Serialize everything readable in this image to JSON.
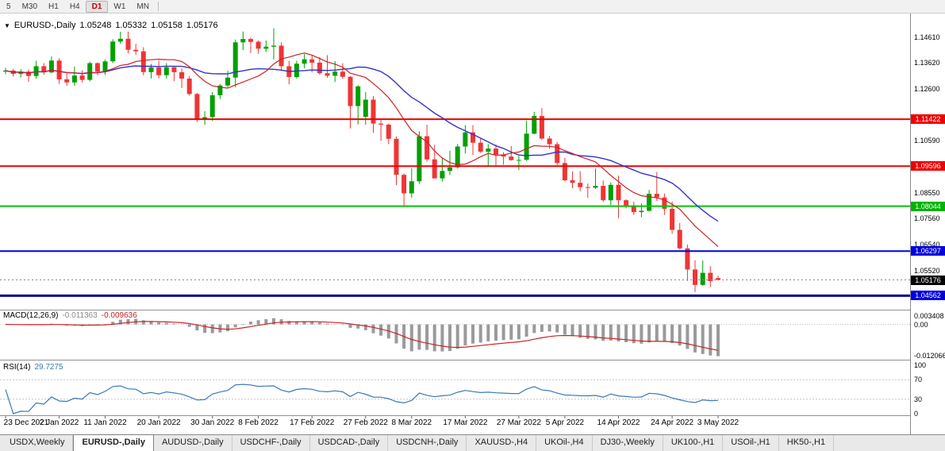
{
  "toolbar": {
    "timeframes": [
      {
        "label": "5",
        "active": false
      },
      {
        "label": "M30",
        "active": false
      },
      {
        "label": "H1",
        "active": false
      },
      {
        "label": "H4",
        "active": false
      },
      {
        "label": "D1",
        "active": true
      },
      {
        "label": "W1",
        "active": false
      },
      {
        "label": "MN",
        "active": false
      }
    ]
  },
  "chart_header": {
    "symbol": "EURUSD-,Daily",
    "open": "1.05248",
    "high": "1.05332",
    "low": "1.05158",
    "close": "1.05176"
  },
  "indicators": {
    "macd": {
      "title": "MACD(12,26,9)",
      "value1": "-0.011363",
      "value2": "-0.009636",
      "axis_labels": [
        {
          "label": "0.003408",
          "value": 0.003408
        },
        {
          "label": "0.00",
          "value": 0
        },
        {
          "label": "-0.012066",
          "value": -0.012066
        }
      ],
      "range_max": 0.0036,
      "range_min": -0.0125
    },
    "rsi": {
      "title": "RSI(14)",
      "value": "29.7275",
      "axis_labels": [
        {
          "label": "100",
          "value": 100
        },
        {
          "label": "70",
          "value": 70
        },
        {
          "label": "30",
          "value": 30
        },
        {
          "label": "0",
          "value": 0
        }
      ],
      "levels": [
        70,
        30
      ]
    }
  },
  "colors": {
    "bull": "#00a000",
    "bear": "#ef3535",
    "ma_slow": "#3333cc",
    "ma_fast": "#cc2222",
    "macd_hist": "#9a9a9a",
    "macd_signal": "#cc2222",
    "rsi_line": "#3a78b5",
    "bid_tag_bg": "#000000",
    "divider": "#909090"
  },
  "price_axis_ticks": [
    {
      "label": "1.14610",
      "price": 1.1461
    },
    {
      "label": "1.13620",
      "price": 1.1362
    },
    {
      "label": "1.12600",
      "price": 1.126
    },
    {
      "label": "1.10590",
      "price": 1.1059
    },
    {
      "label": "1.08550",
      "price": 1.0855
    },
    {
      "label": "1.07560",
      "price": 1.0756
    },
    {
      "label": "1.06540",
      "price": 1.0654
    },
    {
      "label": "1.05520",
      "price": 1.0552
    }
  ],
  "chart_data": {
    "type": "candlestick",
    "symbol": "EURUSD-",
    "timeframe": "Daily",
    "price_max": 1.1553,
    "price_min": 1.0408,
    "bid": 1.05176,
    "bid_label": "1.05176",
    "levels": [
      {
        "label": "1.11422",
        "price": 1.11422,
        "line": "#ee0000",
        "tag": "#ee0000",
        "width": 2
      },
      {
        "label": "1.09596",
        "price": 1.09596,
        "line": "#ee0000",
        "tag": "#ee0000",
        "width": 2
      },
      {
        "label": "1.08044",
        "price": 1.08044,
        "line": "#00c800",
        "tag": "#00b400",
        "width": 2
      },
      {
        "label": "1.06297",
        "price": 1.06297,
        "line": "#0000e0",
        "tag": "#0000e0",
        "width": 2
      },
      {
        "label": "1.04562",
        "price": 1.04562,
        "line": "#000090",
        "tag": "#0000e0",
        "width": 3
      }
    ],
    "overlays": [
      {
        "name": "ma-slow",
        "type": "sma",
        "period": 20
      },
      {
        "name": "ma-fast",
        "type": "sma",
        "period": 10
      }
    ],
    "date_ticks": [
      {
        "i": 0,
        "label": "23 Dec 2021"
      },
      {
        "i": 7,
        "label": "2 Jan 2022"
      },
      {
        "i": 13,
        "label": "11 Jan 2022"
      },
      {
        "i": 20,
        "label": "20 Jan 2022"
      },
      {
        "i": 27,
        "label": "30 Jan 2022"
      },
      {
        "i": 33,
        "label": "8 Feb 2022"
      },
      {
        "i": 40,
        "label": "17 Feb 2022"
      },
      {
        "i": 47,
        "label": "27 Feb 2022"
      },
      {
        "i": 53,
        "label": "8 Mar 2022"
      },
      {
        "i": 60,
        "label": "17 Mar 2022"
      },
      {
        "i": 67,
        "label": "27 Mar 2022"
      },
      {
        "i": 73,
        "label": "5 Apr 2022"
      },
      {
        "i": 80,
        "label": "14 Apr 2022"
      },
      {
        "i": 87,
        "label": "24 Apr 2022"
      },
      {
        "i": 93,
        "label": "3 May 2022"
      }
    ],
    "candles": [
      [
        1.1327,
        1.1342,
        1.1317,
        1.1331
      ],
      [
        1.1331,
        1.1338,
        1.1308,
        1.1318
      ],
      [
        1.1318,
        1.1336,
        1.1305,
        1.1327
      ],
      [
        1.1327,
        1.1335,
        1.1287,
        1.131
      ],
      [
        1.131,
        1.1369,
        1.13,
        1.1348
      ],
      [
        1.1348,
        1.136,
        1.1315,
        1.1324
      ],
      [
        1.1324,
        1.1386,
        1.1321,
        1.137
      ],
      [
        1.137,
        1.1379,
        1.1279,
        1.1297
      ],
      [
        1.1297,
        1.1324,
        1.1272,
        1.1285
      ],
      [
        1.1285,
        1.1347,
        1.1272,
        1.1312
      ],
      [
        1.1312,
        1.1332,
        1.1285,
        1.1295
      ],
      [
        1.1295,
        1.1366,
        1.1289,
        1.136
      ],
      [
        1.136,
        1.1363,
        1.1313,
        1.1327
      ],
      [
        1.1327,
        1.1374,
        1.1314,
        1.1367
      ],
      [
        1.1367,
        1.1453,
        1.136,
        1.1444
      ],
      [
        1.1444,
        1.1482,
        1.1435,
        1.1455
      ],
      [
        1.1455,
        1.1483,
        1.1398,
        1.1412
      ],
      [
        1.1412,
        1.1435,
        1.1392,
        1.1406
      ],
      [
        1.1406,
        1.1422,
        1.1313,
        1.1325
      ],
      [
        1.1325,
        1.1357,
        1.1301,
        1.1343
      ],
      [
        1.1343,
        1.1369,
        1.1301,
        1.1313
      ],
      [
        1.1313,
        1.136,
        1.13,
        1.1344
      ],
      [
        1.1344,
        1.1349,
        1.129,
        1.1325
      ],
      [
        1.1325,
        1.134,
        1.1263,
        1.13
      ],
      [
        1.13,
        1.131,
        1.1234,
        1.124
      ],
      [
        1.124,
        1.1244,
        1.1131,
        1.1144
      ],
      [
        1.1144,
        1.1173,
        1.1121,
        1.115
      ],
      [
        1.115,
        1.1248,
        1.1135,
        1.1235
      ],
      [
        1.1235,
        1.1279,
        1.1221,
        1.1273
      ],
      [
        1.1273,
        1.133,
        1.1266,
        1.1304
      ],
      [
        1.1304,
        1.1452,
        1.1266,
        1.1441
      ],
      [
        1.1441,
        1.1483,
        1.1411,
        1.1454
      ],
      [
        1.1454,
        1.1459,
        1.1399,
        1.1443
      ],
      [
        1.1443,
        1.1448,
        1.1396,
        1.1416
      ],
      [
        1.1416,
        1.1448,
        1.1403,
        1.1424
      ],
      [
        1.1424,
        1.1495,
        1.1374,
        1.1428
      ],
      [
        1.1428,
        1.1441,
        1.133,
        1.1348
      ],
      [
        1.1348,
        1.1369,
        1.1278,
        1.1306
      ],
      [
        1.1306,
        1.1369,
        1.13,
        1.1358
      ],
      [
        1.1358,
        1.1395,
        1.134,
        1.1375
      ],
      [
        1.1375,
        1.139,
        1.1324,
        1.1362
      ],
      [
        1.1362,
        1.1384,
        1.1315,
        1.1321
      ],
      [
        1.1321,
        1.1391,
        1.1303,
        1.1311
      ],
      [
        1.1311,
        1.1368,
        1.1287,
        1.1327
      ],
      [
        1.1327,
        1.136,
        1.1299,
        1.1307
      ],
      [
        1.1307,
        1.131,
        1.1106,
        1.1193
      ],
      [
        1.1193,
        1.1274,
        1.1122,
        1.127
      ],
      [
        1.1151,
        1.1247,
        1.1121,
        1.1218
      ],
      [
        1.1218,
        1.1232,
        1.109,
        1.1125
      ],
      [
        1.1125,
        1.1139,
        1.1058,
        1.1121
      ],
      [
        1.1121,
        1.1125,
        1.1045,
        1.1066
      ],
      [
        1.1066,
        1.1075,
        1.0886,
        1.0926
      ],
      [
        1.0926,
        1.0931,
        1.0806,
        1.0854
      ],
      [
        1.0854,
        1.0951,
        1.0836,
        1.0901
      ],
      [
        1.0901,
        1.1095,
        1.0891,
        1.1076
      ],
      [
        1.1076,
        1.1121,
        1.0977,
        1.0986
      ],
      [
        1.0986,
        1.1043,
        1.0963,
        1.0912
      ],
      [
        1.0912,
        1.0991,
        1.09,
        1.0941
      ],
      [
        1.0941,
        1.102,
        1.0925,
        1.0955
      ],
      [
        1.0955,
        1.1046,
        1.095,
        1.1036
      ],
      [
        1.1036,
        1.1119,
        1.1009,
        1.1091
      ],
      [
        1.1091,
        1.1119,
        1.1003,
        1.1051
      ],
      [
        1.1051,
        1.1069,
        1.1011,
        1.1016
      ],
      [
        1.1016,
        1.1046,
        1.0962,
        1.1028
      ],
      [
        1.1028,
        1.1044,
        1.0963,
        1.1005
      ],
      [
        1.1005,
        1.1014,
        1.0965,
        1.0997
      ],
      [
        1.0997,
        1.1038,
        1.0981,
        1.0983
      ],
      [
        1.0983,
        1.0999,
        1.0944,
        1.0984
      ],
      [
        1.0984,
        1.1137,
        1.098,
        1.1086
      ],
      [
        1.1086,
        1.1171,
        1.1084,
        1.1155
      ],
      [
        1.1155,
        1.1185,
        1.1061,
        1.1067
      ],
      [
        1.1067,
        1.1077,
        1.1027,
        1.1045
      ],
      [
        1.1045,
        1.1054,
        1.0963,
        1.0972
      ],
      [
        1.0972,
        1.0992,
        1.09,
        1.0905
      ],
      [
        1.0905,
        1.0939,
        1.0874,
        1.0895
      ],
      [
        1.0895,
        1.094,
        1.0862,
        1.0878
      ],
      [
        1.0878,
        1.0892,
        1.0836,
        1.0876
      ],
      [
        1.0876,
        1.095,
        1.0872,
        1.0883
      ],
      [
        1.0883,
        1.0904,
        1.0821,
        1.0827
      ],
      [
        1.0827,
        1.0897,
        1.0809,
        1.0887
      ],
      [
        1.0887,
        1.0923,
        1.0757,
        1.0827
      ],
      [
        1.0827,
        1.0831,
        1.0796,
        1.0807
      ],
      [
        1.0807,
        1.0822,
        1.077,
        1.0781
      ],
      [
        1.0781,
        1.0815,
        1.0761,
        1.0786
      ],
      [
        1.0786,
        1.0867,
        1.0783,
        1.0852
      ],
      [
        1.0852,
        1.0937,
        1.0824,
        1.0838
      ],
      [
        1.0838,
        1.0853,
        1.077,
        1.0794
      ],
      [
        1.0794,
        1.0822,
        1.0697,
        1.0712
      ],
      [
        1.0712,
        1.0739,
        1.0635,
        1.064
      ],
      [
        1.064,
        1.0655,
        1.0514,
        1.0558
      ],
      [
        1.0558,
        1.0594,
        1.047,
        1.0498
      ],
      [
        1.0498,
        1.0593,
        1.0494,
        1.0545
      ],
      [
        1.0545,
        1.0571,
        1.049,
        1.0513
      ],
      [
        1.05248,
        1.05332,
        1.05158,
        1.05176
      ]
    ]
  },
  "tabs": [
    {
      "label": "USDX,Weekly",
      "active": false
    },
    {
      "label": "EURUSD-,Daily",
      "active": true
    },
    {
      "label": "AUDUSD-,Daily",
      "active": false
    },
    {
      "label": "USDCHF-,Daily",
      "active": false
    },
    {
      "label": "USDCAD-,Daily",
      "active": false
    },
    {
      "label": "USDCNH-,Daily",
      "active": false
    },
    {
      "label": "XAUUSD-,H4",
      "active": false
    },
    {
      "label": "UKOil-,H4",
      "active": false
    },
    {
      "label": "DJ30-,Weekly",
      "active": false
    },
    {
      "label": "UK100-,H1",
      "active": false
    },
    {
      "label": "USOil-,H1",
      "active": false
    },
    {
      "label": "HK50-,H1",
      "active": false
    }
  ]
}
